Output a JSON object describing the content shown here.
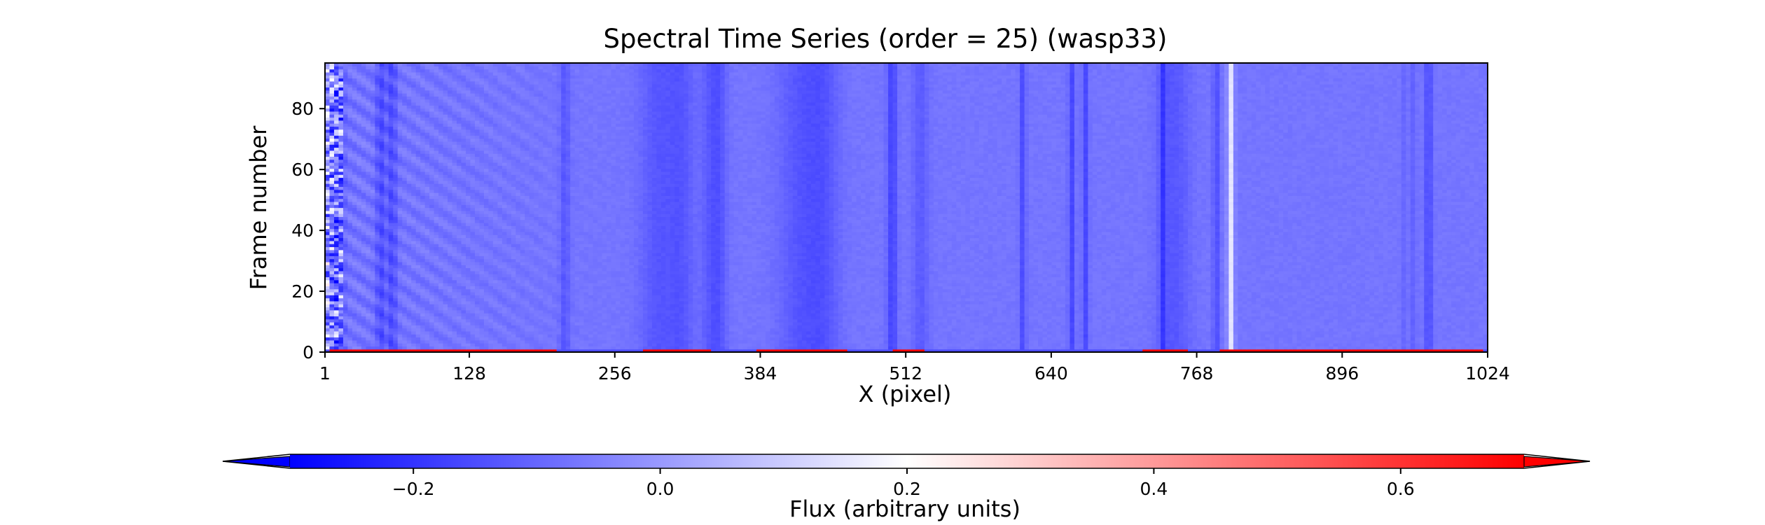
{
  "chart_data": {
    "type": "heatmap",
    "title": "Spectral Time Series (order = 25) (wasp33)",
    "xlabel": "X (pixel)",
    "ylabel": "Frame number",
    "xlim": [
      1,
      1024
    ],
    "ylim": [
      0,
      95
    ],
    "x_ticks": [
      "1",
      "128",
      "256",
      "384",
      "512",
      "640",
      "768",
      "896",
      "1024"
    ],
    "x_tick_values": [
      1,
      128,
      256,
      384,
      512,
      640,
      768,
      896,
      1024
    ],
    "y_ticks": [
      "0",
      "20",
      "40",
      "60",
      "80"
    ],
    "y_tick_values": [
      0,
      20,
      40,
      60,
      80
    ],
    "colorbar": {
      "label": "Flux (arbitrary units)",
      "range": [
        -0.3,
        0.7
      ],
      "extend": "both",
      "ticks": [
        "−0.2",
        "0.0",
        "0.2",
        "0.4",
        "0.6"
      ],
      "tick_values": [
        -0.2,
        0.0,
        0.2,
        0.4,
        0.6
      ],
      "cmap": "bwr",
      "orientation": "horizontal",
      "placement": "bottom"
    },
    "background_value": -0.07,
    "absorption_lines": [
      {
        "x": 12,
        "width": 4,
        "depth": 0.1
      },
      {
        "x": 50,
        "width": 3,
        "depth": 0.08
      },
      {
        "x": 60,
        "width": 3,
        "depth": 0.08
      },
      {
        "x": 212,
        "width": 3,
        "depth": 0.06
      },
      {
        "x": 295,
        "width": 12,
        "depth": 0.06
      },
      {
        "x": 315,
        "width": 8,
        "depth": 0.05
      },
      {
        "x": 340,
        "width": 6,
        "depth": 0.05
      },
      {
        "x": 348,
        "width": 5,
        "depth": 0.05
      },
      {
        "x": 420,
        "width": 14,
        "depth": 0.06
      },
      {
        "x": 440,
        "width": 10,
        "depth": 0.05
      },
      {
        "x": 500,
        "width": 3,
        "depth": 0.1
      },
      {
        "x": 525,
        "width": 5,
        "depth": 0.05
      },
      {
        "x": 615,
        "width": 2,
        "depth": 0.08
      },
      {
        "x": 658,
        "width": 2,
        "depth": 0.09
      },
      {
        "x": 670,
        "width": 2,
        "depth": 0.09
      },
      {
        "x": 738,
        "width": 2,
        "depth": 0.09
      },
      {
        "x": 748,
        "width": 10,
        "depth": 0.06
      },
      {
        "x": 785,
        "width": 2,
        "depth": 0.08
      },
      {
        "x": 955,
        "width": 3,
        "depth": 0.12
      },
      {
        "x": 972,
        "width": 2,
        "depth": 0.1
      }
    ],
    "emission_lines": [
      {
        "x": 798,
        "width": 2,
        "value": 0.15
      },
      {
        "x": 955,
        "width": 2,
        "value": 0.05
      }
    ],
    "bottom_row_red": [
      [
        5,
        205
      ],
      [
        280,
        340
      ],
      [
        380,
        460
      ],
      [
        500,
        530
      ],
      [
        720,
        760
      ],
      [
        790,
        1020
      ]
    ],
    "colors": {
      "min": "#0000ff",
      "mid": "#ffffff",
      "max": "#ff0000"
    }
  }
}
